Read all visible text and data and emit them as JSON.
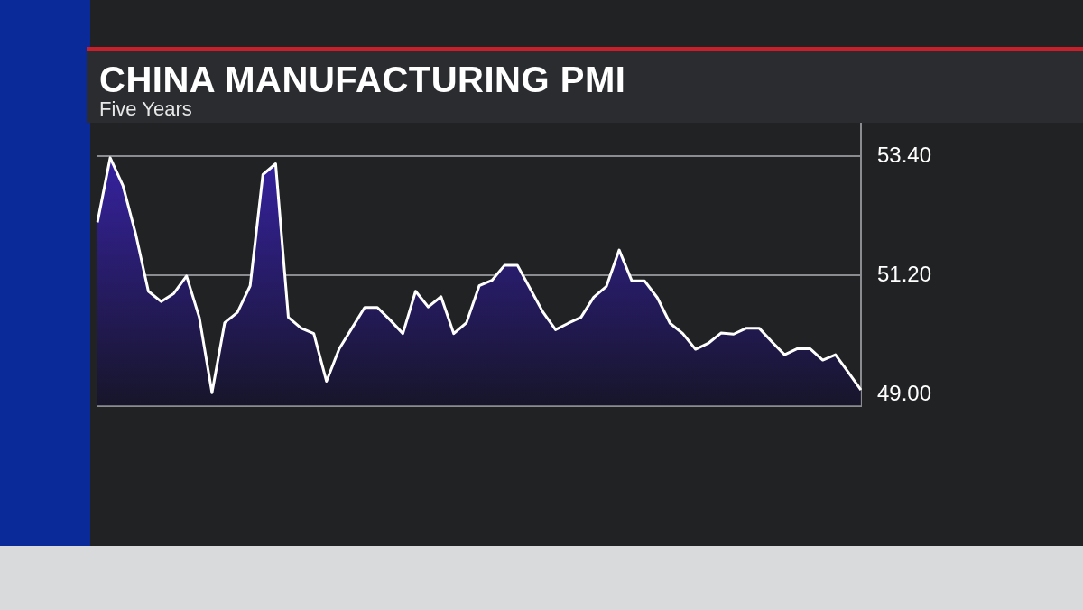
{
  "chart_data": {
    "type": "area",
    "title": "CHINA MANUFACTURING PMI",
    "subtitle": "Five Years",
    "categories": [
      null,
      null,
      null,
      null,
      null,
      null,
      null,
      null,
      null,
      null,
      null,
      null,
      null,
      null,
      null,
      null,
      null,
      null,
      null,
      null,
      null,
      null,
      null,
      null,
      null,
      null,
      null,
      null,
      null,
      null,
      null,
      null,
      null,
      null,
      null,
      null,
      null,
      null,
      null,
      null,
      null,
      null,
      null,
      null,
      null,
      null,
      null,
      null,
      null,
      null,
      null,
      null,
      null,
      null,
      null,
      null,
      null,
      null,
      null,
      null,
      null
    ],
    "series": [
      {
        "color": "#3a24b0",
        "values": [
          52.18,
          53.37,
          52.86,
          51.97,
          50.91,
          50.72,
          50.87,
          51.19,
          50.43,
          49.04,
          50.33,
          50.52,
          51.01,
          53.06,
          53.26,
          50.43,
          50.23,
          50.13,
          49.25,
          49.85,
          50.23,
          50.61,
          50.61,
          50.38,
          50.13,
          50.91,
          50.62,
          50.81,
          50.13,
          50.33,
          51.01,
          51.11,
          51.39,
          51.39,
          50.96,
          50.53,
          50.2,
          50.32,
          50.43,
          50.8,
          51.0,
          51.67,
          51.1,
          51.1,
          50.79,
          50.32,
          50.13,
          49.84,
          49.95,
          50.14,
          50.12,
          50.23,
          50.23,
          49.98,
          49.74,
          49.85,
          49.85,
          49.64,
          49.74,
          49.42,
          49.09
        ]
      }
    ],
    "ylim": [
      48.8,
      54.0
    ],
    "yticks": [
      {
        "value": 49,
        "label": "49.00"
      },
      {
        "value": 51.2,
        "label": "51.20"
      },
      {
        "value": 53.4,
        "label": "53.40"
      }
    ],
    "grid": "y"
  }
}
